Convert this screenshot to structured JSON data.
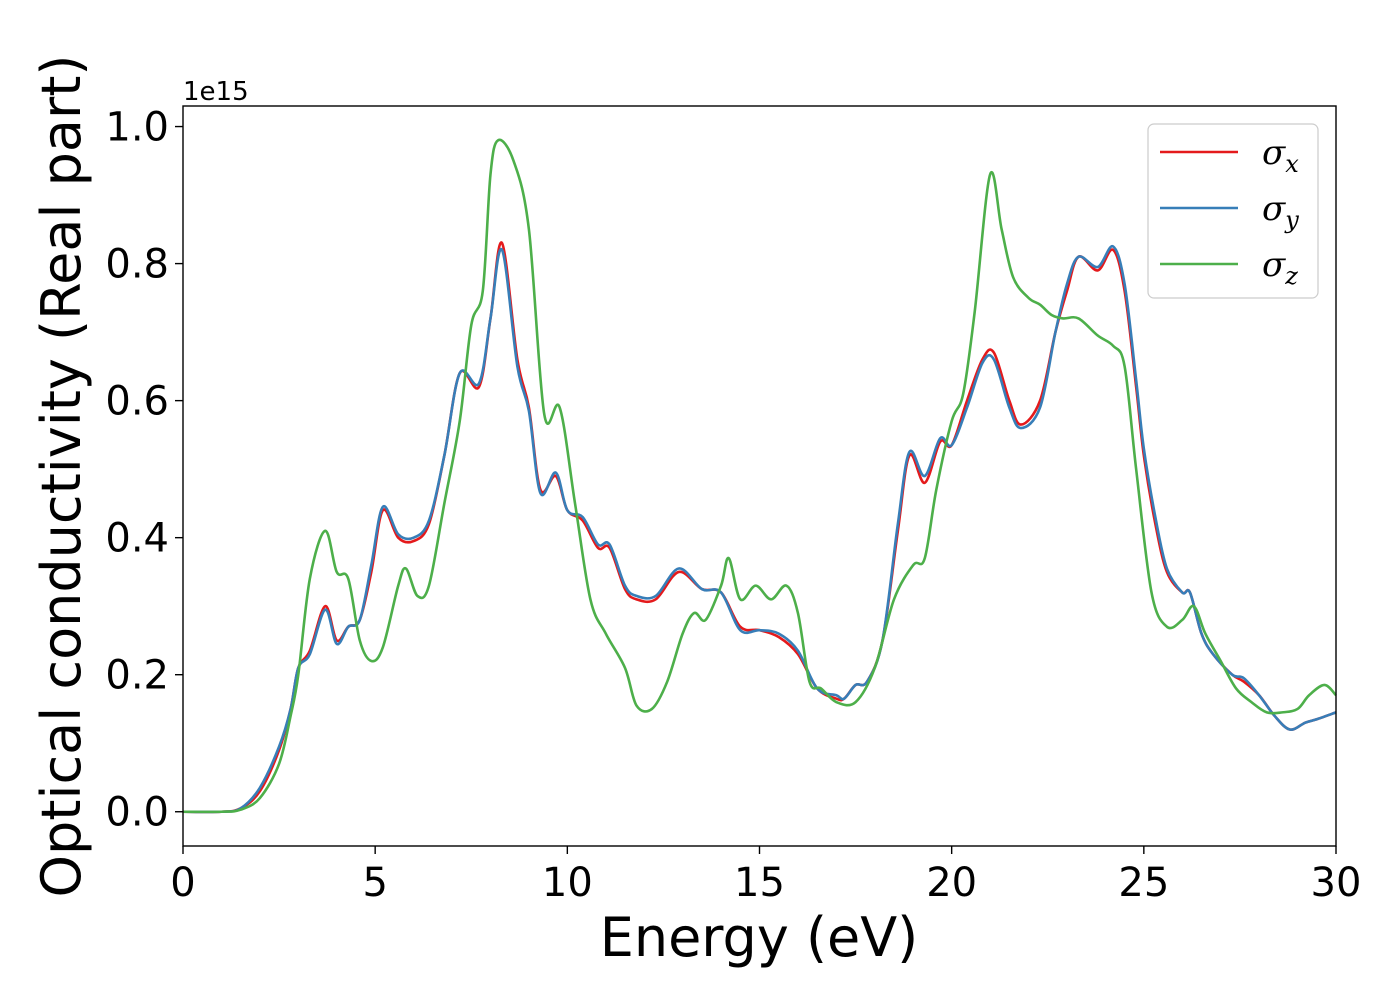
{
  "chart_data": {
    "type": "line",
    "title": "",
    "xlabel": "Energy (eV)",
    "ylabel": "Optical conductivity (Real part)",
    "y_offset_label": "1e15",
    "xlim": [
      0,
      30
    ],
    "ylim": [
      -0.05,
      1.03
    ],
    "x_ticks": [
      "0",
      "5",
      "10",
      "15",
      "20",
      "25",
      "30"
    ],
    "y_ticks": [
      "0.0",
      "0.2",
      "0.4",
      "0.6",
      "0.8",
      "1.0"
    ],
    "grid": false,
    "legend_position": "top-right",
    "series": [
      {
        "name": "σx",
        "symbol": "σ",
        "subscript": "x",
        "color": "#e41a1c",
        "points": [
          [
            0,
            0
          ],
          [
            1,
            0
          ],
          [
            1.5,
            0.005
          ],
          [
            2,
            0.03
          ],
          [
            2.5,
            0.09
          ],
          [
            2.8,
            0.15
          ],
          [
            3.0,
            0.21
          ],
          [
            3.3,
            0.235
          ],
          [
            3.7,
            0.3
          ],
          [
            4.0,
            0.25
          ],
          [
            4.3,
            0.27
          ],
          [
            4.6,
            0.28
          ],
          [
            4.9,
            0.35
          ],
          [
            5.2,
            0.44
          ],
          [
            5.6,
            0.4
          ],
          [
            6.0,
            0.395
          ],
          [
            6.4,
            0.42
          ],
          [
            6.8,
            0.52
          ],
          [
            7.2,
            0.64
          ],
          [
            7.7,
            0.62
          ],
          [
            8.0,
            0.72
          ],
          [
            8.3,
            0.83
          ],
          [
            8.7,
            0.66
          ],
          [
            9.0,
            0.59
          ],
          [
            9.3,
            0.47
          ],
          [
            9.7,
            0.49
          ],
          [
            10.0,
            0.44
          ],
          [
            10.4,
            0.425
          ],
          [
            10.8,
            0.385
          ],
          [
            11.1,
            0.385
          ],
          [
            11.5,
            0.325
          ],
          [
            11.8,
            0.31
          ],
          [
            12.3,
            0.31
          ],
          [
            12.9,
            0.35
          ],
          [
            13.5,
            0.325
          ],
          [
            14.0,
            0.32
          ],
          [
            14.5,
            0.27
          ],
          [
            15.0,
            0.265
          ],
          [
            15.5,
            0.255
          ],
          [
            16.0,
            0.23
          ],
          [
            16.5,
            0.18
          ],
          [
            17.0,
            0.165
          ],
          [
            17.2,
            0.165
          ],
          [
            17.5,
            0.185
          ],
          [
            17.8,
            0.19
          ],
          [
            18.2,
            0.25
          ],
          [
            18.6,
            0.41
          ],
          [
            18.9,
            0.52
          ],
          [
            19.3,
            0.48
          ],
          [
            19.7,
            0.54
          ],
          [
            20.0,
            0.535
          ],
          [
            20.4,
            0.6
          ],
          [
            20.8,
            0.66
          ],
          [
            21.1,
            0.67
          ],
          [
            21.5,
            0.6
          ],
          [
            21.8,
            0.565
          ],
          [
            22.3,
            0.6
          ],
          [
            22.7,
            0.7
          ],
          [
            23.0,
            0.76
          ],
          [
            23.3,
            0.81
          ],
          [
            23.8,
            0.79
          ],
          [
            24.2,
            0.82
          ],
          [
            24.5,
            0.76
          ],
          [
            24.8,
            0.62
          ],
          [
            25.0,
            0.52
          ],
          [
            25.3,
            0.42
          ],
          [
            25.6,
            0.35
          ],
          [
            26.0,
            0.32
          ],
          [
            26.2,
            0.32
          ],
          [
            26.5,
            0.26
          ],
          [
            26.8,
            0.23
          ],
          [
            27.3,
            0.2
          ],
          [
            27.6,
            0.19
          ],
          [
            28.0,
            0.17
          ],
          [
            28.4,
            0.14
          ],
          [
            28.8,
            0.12
          ],
          [
            29.2,
            0.13
          ],
          [
            29.5,
            0.135
          ],
          [
            30.0,
            0.145
          ]
        ]
      },
      {
        "name": "σy",
        "symbol": "σ",
        "subscript": "y",
        "color": "#377eb8",
        "points": [
          [
            0,
            0
          ],
          [
            1,
            0
          ],
          [
            1.5,
            0.005
          ],
          [
            2,
            0.035
          ],
          [
            2.5,
            0.095
          ],
          [
            2.8,
            0.15
          ],
          [
            3.0,
            0.21
          ],
          [
            3.3,
            0.23
          ],
          [
            3.7,
            0.295
          ],
          [
            4.0,
            0.245
          ],
          [
            4.3,
            0.27
          ],
          [
            4.6,
            0.28
          ],
          [
            4.9,
            0.36
          ],
          [
            5.2,
            0.445
          ],
          [
            5.6,
            0.405
          ],
          [
            6.0,
            0.4
          ],
          [
            6.4,
            0.425
          ],
          [
            6.8,
            0.52
          ],
          [
            7.2,
            0.64
          ],
          [
            7.7,
            0.625
          ],
          [
            8.0,
            0.72
          ],
          [
            8.3,
            0.82
          ],
          [
            8.7,
            0.65
          ],
          [
            9.0,
            0.585
          ],
          [
            9.3,
            0.465
          ],
          [
            9.7,
            0.495
          ],
          [
            10.0,
            0.44
          ],
          [
            10.4,
            0.43
          ],
          [
            10.8,
            0.39
          ],
          [
            11.1,
            0.39
          ],
          [
            11.5,
            0.33
          ],
          [
            11.8,
            0.315
          ],
          [
            12.3,
            0.315
          ],
          [
            12.9,
            0.355
          ],
          [
            13.5,
            0.325
          ],
          [
            14.0,
            0.32
          ],
          [
            14.5,
            0.265
          ],
          [
            15.0,
            0.265
          ],
          [
            15.5,
            0.26
          ],
          [
            16.0,
            0.235
          ],
          [
            16.5,
            0.18
          ],
          [
            17.0,
            0.17
          ],
          [
            17.2,
            0.165
          ],
          [
            17.5,
            0.185
          ],
          [
            17.8,
            0.19
          ],
          [
            18.2,
            0.25
          ],
          [
            18.6,
            0.42
          ],
          [
            18.9,
            0.525
          ],
          [
            19.3,
            0.49
          ],
          [
            19.7,
            0.545
          ],
          [
            20.0,
            0.535
          ],
          [
            20.4,
            0.59
          ],
          [
            20.8,
            0.655
          ],
          [
            21.1,
            0.66
          ],
          [
            21.5,
            0.59
          ],
          [
            21.8,
            0.56
          ],
          [
            22.3,
            0.59
          ],
          [
            22.7,
            0.7
          ],
          [
            23.0,
            0.77
          ],
          [
            23.3,
            0.81
          ],
          [
            23.8,
            0.795
          ],
          [
            24.2,
            0.825
          ],
          [
            24.5,
            0.77
          ],
          [
            24.8,
            0.63
          ],
          [
            25.0,
            0.53
          ],
          [
            25.3,
            0.43
          ],
          [
            25.6,
            0.355
          ],
          [
            26.0,
            0.32
          ],
          [
            26.2,
            0.32
          ],
          [
            26.5,
            0.26
          ],
          [
            26.8,
            0.23
          ],
          [
            27.3,
            0.2
          ],
          [
            27.6,
            0.195
          ],
          [
            28.0,
            0.17
          ],
          [
            28.4,
            0.14
          ],
          [
            28.8,
            0.12
          ],
          [
            29.2,
            0.13
          ],
          [
            29.5,
            0.135
          ],
          [
            30.0,
            0.145
          ]
        ]
      },
      {
        "name": "σz",
        "symbol": "σ",
        "subscript": "z",
        "color": "#4daf4a",
        "points": [
          [
            0,
            0
          ],
          [
            1,
            0
          ],
          [
            1.5,
            0.003
          ],
          [
            2,
            0.02
          ],
          [
            2.5,
            0.07
          ],
          [
            2.8,
            0.14
          ],
          [
            3.0,
            0.2
          ],
          [
            3.3,
            0.34
          ],
          [
            3.7,
            0.41
          ],
          [
            4.0,
            0.35
          ],
          [
            4.3,
            0.34
          ],
          [
            4.6,
            0.25
          ],
          [
            4.9,
            0.22
          ],
          [
            5.2,
            0.24
          ],
          [
            5.6,
            0.33
          ],
          [
            5.8,
            0.355
          ],
          [
            6.1,
            0.315
          ],
          [
            6.4,
            0.33
          ],
          [
            6.8,
            0.45
          ],
          [
            7.2,
            0.57
          ],
          [
            7.5,
            0.71
          ],
          [
            7.8,
            0.76
          ],
          [
            8.0,
            0.93
          ],
          [
            8.2,
            0.98
          ],
          [
            8.6,
            0.95
          ],
          [
            9.0,
            0.85
          ],
          [
            9.4,
            0.58
          ],
          [
            9.8,
            0.59
          ],
          [
            10.2,
            0.45
          ],
          [
            10.6,
            0.31
          ],
          [
            11.0,
            0.26
          ],
          [
            11.5,
            0.21
          ],
          [
            11.8,
            0.155
          ],
          [
            12.2,
            0.15
          ],
          [
            12.6,
            0.19
          ],
          [
            13.0,
            0.26
          ],
          [
            13.3,
            0.29
          ],
          [
            13.6,
            0.28
          ],
          [
            14.0,
            0.33
          ],
          [
            14.2,
            0.37
          ],
          [
            14.5,
            0.31
          ],
          [
            14.9,
            0.33
          ],
          [
            15.3,
            0.31
          ],
          [
            15.7,
            0.33
          ],
          [
            16.0,
            0.29
          ],
          [
            16.3,
            0.19
          ],
          [
            16.6,
            0.18
          ],
          [
            17.0,
            0.16
          ],
          [
            17.5,
            0.16
          ],
          [
            18.0,
            0.21
          ],
          [
            18.5,
            0.31
          ],
          [
            19.0,
            0.36
          ],
          [
            19.3,
            0.37
          ],
          [
            19.6,
            0.47
          ],
          [
            20.0,
            0.57
          ],
          [
            20.3,
            0.61
          ],
          [
            20.6,
            0.73
          ],
          [
            21.0,
            0.93
          ],
          [
            21.3,
            0.85
          ],
          [
            21.6,
            0.78
          ],
          [
            22.0,
            0.75
          ],
          [
            22.3,
            0.74
          ],
          [
            22.6,
            0.725
          ],
          [
            22.9,
            0.72
          ],
          [
            23.3,
            0.72
          ],
          [
            23.8,
            0.695
          ],
          [
            24.2,
            0.68
          ],
          [
            24.5,
            0.65
          ],
          [
            24.8,
            0.5
          ],
          [
            25.2,
            0.32
          ],
          [
            25.6,
            0.27
          ],
          [
            26.0,
            0.28
          ],
          [
            26.3,
            0.3
          ],
          [
            26.6,
            0.26
          ],
          [
            27.0,
            0.22
          ],
          [
            27.4,
            0.18
          ],
          [
            27.8,
            0.16
          ],
          [
            28.2,
            0.145
          ],
          [
            28.6,
            0.145
          ],
          [
            29.0,
            0.15
          ],
          [
            29.3,
            0.17
          ],
          [
            29.7,
            0.185
          ],
          [
            30.0,
            0.17
          ]
        ]
      }
    ]
  }
}
